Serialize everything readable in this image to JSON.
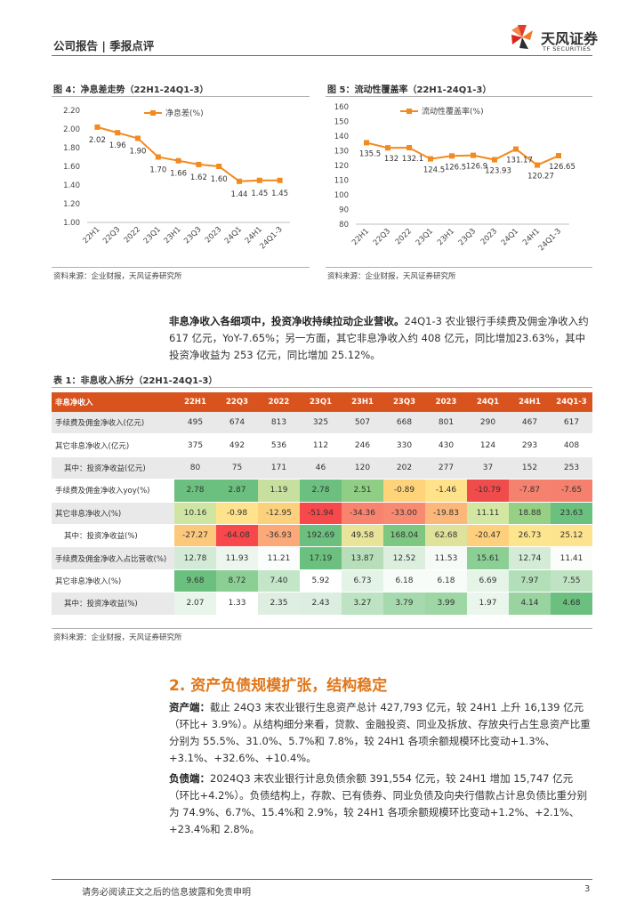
{
  "header": {
    "left": "公司报告 | 季报点评",
    "logo_name": "天风证券",
    "logo_sub": "TF SECURITIES"
  },
  "figure4": {
    "title": "图 4：净息差走势（22H1-24Q1-3）",
    "legend": "净息差(%)",
    "source": "资料来源：企业财报，天风证券研究所",
    "chart_data": {
      "type": "line",
      "categories": [
        "22H1",
        "22Q3",
        "2022",
        "23Q1",
        "23H1",
        "23Q3",
        "2023",
        "24Q1",
        "24H1",
        "24Q1-3"
      ],
      "series": [
        {
          "name": "净息差(%)",
          "values": [
            2.02,
            1.96,
            1.9,
            1.7,
            1.66,
            1.62,
            1.6,
            1.44,
            1.45,
            1.45
          ]
        }
      ],
      "value_labels": [
        "2.02",
        "1.96",
        "1.90",
        "1.70",
        "1.66",
        "1.62",
        "1.60",
        "1.44",
        "1.45",
        "1.45"
      ],
      "yticks": [
        "2.20",
        "2.00",
        "1.80",
        "1.60",
        "1.40",
        "1.20",
        "1.00"
      ],
      "ylim": [
        1.0,
        2.2
      ],
      "color": "#f28a1e"
    }
  },
  "figure5": {
    "title": "图 5：流动性覆盖率（22H1-24Q1-3）",
    "legend": "流动性覆盖率(%)",
    "source": "资料来源：企业财报，天风证券研究所",
    "chart_data": {
      "type": "line",
      "categories": [
        "22H1",
        "22Q3",
        "2022",
        "23Q1",
        "23H1",
        "23Q3",
        "2023",
        "24Q1",
        "24H1",
        "24Q1-3"
      ],
      "series": [
        {
          "name": "流动性覆盖率(%)",
          "values": [
            135.5,
            132,
            132.1,
            124.5,
            126.5,
            126.9,
            123.93,
            131.17,
            120.27,
            126.65
          ]
        }
      ],
      "value_labels": [
        "135.5",
        "132",
        "132.1",
        "124.5",
        "126.5",
        "126.9",
        "123.93",
        "131.17",
        "120.27",
        "126.65"
      ],
      "yticks": [
        "160",
        "150",
        "140",
        "130",
        "120",
        "110",
        "100",
        "90",
        "80"
      ],
      "ylim": [
        80,
        160
      ],
      "color": "#f28a1e"
    }
  },
  "para1": {
    "bold": "非息净收入各细项中，投资净收持续拉动企业营收。",
    "text": "24Q1-3 农业银行手续费及佣金净收入约617 亿元，YoY-7.65%；另一方面，其它非息净收入约 408 亿元，同比增加23.63%，其中投资净收益为 253 亿元，同比增加 25.12%。"
  },
  "table1": {
    "title": "表 1：非息收入拆分（22H1-24Q1-3）",
    "header": [
      "非息净收入",
      "22H1",
      "22Q3",
      "2022",
      "23Q1",
      "23H1",
      "23Q3",
      "2023",
      "24Q1",
      "24H1",
      "24Q1-3"
    ],
    "rows": [
      {
        "label": "手续费及佣金净收入(亿元)",
        "values": [
          "495",
          "674",
          "813",
          "325",
          "507",
          "668",
          "801",
          "290",
          "467",
          "617"
        ],
        "colors": [
          "",
          "",
          "",
          "",
          "",
          "",
          "",
          "",
          "",
          ""
        ],
        "gray": true,
        "sub": false
      },
      {
        "label": "其它非息净收入(亿元)",
        "values": [
          "375",
          "492",
          "536",
          "112",
          "246",
          "330",
          "430",
          "124",
          "293",
          "408"
        ],
        "colors": [
          "",
          "",
          "",
          "",
          "",
          "",
          "",
          "",
          "",
          ""
        ],
        "gray": false,
        "sub": false
      },
      {
        "label": "其中：投资净收益(亿元)",
        "values": [
          "80",
          "75",
          "171",
          "46",
          "120",
          "202",
          "277",
          "37",
          "152",
          "253"
        ],
        "colors": [
          "",
          "",
          "",
          "",
          "",
          "",
          "",
          "",
          "",
          ""
        ],
        "gray": true,
        "sub": true
      },
      {
        "label": "手续费及佣金净收入yoy(%)",
        "values": [
          "2.78",
          "2.87",
          "1.19",
          "2.78",
          "2.51",
          "-0.89",
          "-1.46",
          "-10.79",
          "-7.87",
          "-7.65"
        ],
        "colors": [
          "#6cc07f",
          "#6cc07f",
          "#c7e0a0",
          "#6cc07f",
          "#8fce84",
          "#ffd37a",
          "#ffe289",
          "#f14c4c",
          "#f5826f",
          "#f5806e"
        ],
        "gray": false,
        "sub": false
      },
      {
        "label": "其它非息净收入(%)",
        "values": [
          "10.16",
          "-0.98",
          "-12.95",
          "-51.94",
          "-34.36",
          "-33.00",
          "-19.83",
          "11.11",
          "18.88",
          "23.63"
        ],
        "colors": [
          "#cfe6a2",
          "#ffe38c",
          "#fcd17c",
          "#f7484b",
          "#f8836f",
          "#f88a72",
          "#fcb77a",
          "#d2e7a2",
          "#95d084",
          "#6cc07f"
        ],
        "gray": true,
        "sub": false
      },
      {
        "label": "其中：投资净收益(%)",
        "values": [
          "-27.27",
          "-64.08",
          "-36.93",
          "192.69",
          "49.58",
          "168.04",
          "62.68",
          "-20.47",
          "26.73",
          "25.12"
        ],
        "colors": [
          "#fcc87c",
          "#f7484b",
          "#fba979",
          "#6cc07f",
          "#e8e49a",
          "#7dc781",
          "#dfe29a",
          "#fdd07d",
          "#fde58e",
          "#fde38d"
        ],
        "gray": false,
        "sub": true
      },
      {
        "label": "手续费及佣金净收入占比营收(%)",
        "values": [
          "12.78",
          "11.93",
          "11.21",
          "17.19",
          "13.87",
          "12.52",
          "11.53",
          "15.61",
          "12.74",
          "11.41"
        ],
        "colors": [
          "#d3ead6",
          "#ecf6ee",
          "#fafdfb",
          "#6cc07f",
          "#b7deb9",
          "#dcefdf",
          "#f5faf6",
          "#8ccf95",
          "#d4ebd7",
          "#fbfdfb"
        ],
        "gray": true,
        "sub": false
      },
      {
        "label": "其它非息净收入(%)",
        "values": [
          "9.68",
          "8.72",
          "7.40",
          "5.92",
          "6.73",
          "6.18",
          "6.18",
          "6.69",
          "7.97",
          "7.55"
        ],
        "colors": [
          "#6cc07f",
          "#8ccf95",
          "#c3e5c8",
          "#ffffff",
          "#e3f3e6",
          "#f8fcf9",
          "#f8fcf9",
          "#e5f4e7",
          "#b2dfb8",
          "#c0e3c4"
        ],
        "gray": false,
        "sub": false
      },
      {
        "label": "其中：投资净收益(%)",
        "values": [
          "2.07",
          "1.33",
          "2.35",
          "2.43",
          "3.27",
          "3.79",
          "3.99",
          "1.97",
          "4.14",
          "4.68"
        ],
        "colors": [
          "#e7f5ea",
          "#ffffff",
          "#deefe1",
          "#dbeedf",
          "#bde3c2",
          "#a6d9ad",
          "#9ed6a6",
          "#eaf6ec",
          "#98d3a0",
          "#6cc07f"
        ],
        "gray": true,
        "sub": true
      }
    ],
    "source": "资料来源：企业财报，天风证券研究所"
  },
  "section2": {
    "title": "2. 资产负债规模扩张，结构稳定",
    "asset_bold": "资产端：",
    "asset_text": "截止 24Q3 末农业银行生息资产总计 427,793 亿元，较 24H1 上升 16,139 亿元（环比+ 3.9%）。从结构细分来看，贷款、金融投资、同业及拆放、存放央行占生息资产比重分别为 55.5%、31.0%、5.7%和 7.8%，较 24H1 各项余额规模环比变动+1.3%、+3.1%、+32.6%、+10.4%。",
    "liab_bold": "负债端：",
    "liab_text": "2024Q3 末农业银行计息负债余额 391,554 亿元，较 24H1 增加 15,747 亿元（环比+4.2%）。负债结构上，存款、已有债券、同业负债及向央行借款占计息负债比重分别为 74.9%、6.7%、15.4%和 2.9%，较 24H1 各项余额规模环比变动+1.2%、+2.1%、+23.4%和 2.8%。"
  },
  "footer": {
    "text": "请务必阅读正文之后的信息披露和免责申明",
    "page": "3"
  }
}
